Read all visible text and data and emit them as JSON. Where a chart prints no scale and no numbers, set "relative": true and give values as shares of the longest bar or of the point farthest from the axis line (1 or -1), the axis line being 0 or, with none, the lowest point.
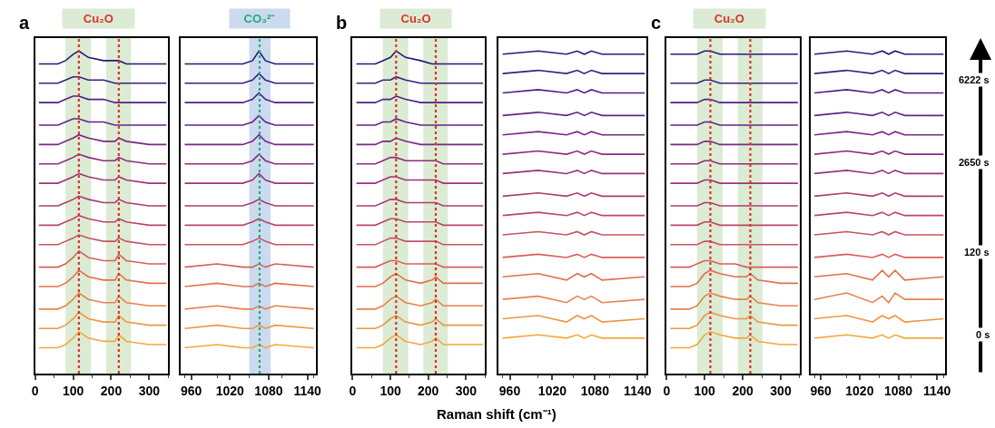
{
  "chart_data": [
    {
      "type": "line",
      "relative": true,
      "title": "Cu₂O",
      "annotations": [
        "a"
      ],
      "line_style": "solid",
      "marker": "none",
      "grid": false,
      "tick_labels": "x",
      "x": [
        10,
        60,
        80,
        100,
        115,
        140,
        180,
        210,
        220,
        240,
        300,
        345
      ],
      "xlim": [
        0,
        350
      ],
      "xticks": [
        0,
        100,
        200,
        300
      ],
      "bands": [
        {
          "axis": "x",
          "from": 80,
          "to": 147,
          "color": "#dcebd3"
        },
        {
          "axis": "x",
          "from": 187,
          "to": 252,
          "color": "#dcebd3"
        }
      ],
      "ref_lines": [
        {
          "axis": "x",
          "value": 115,
          "color": "#d9342b",
          "line_style": "dotted"
        },
        {
          "axis": "x",
          "value": 220,
          "color": "#d9342b",
          "line_style": "dotted"
        }
      ],
      "series": [
        {
          "color": "#f2a93b",
          "values": [
            0.08,
            0.08,
            0.09,
            0.11,
            0.13,
            0.11,
            0.1,
            0.1,
            0.12,
            0.1,
            0.09,
            0.09
          ]
        },
        {
          "color": "#ee9642",
          "values": [
            0.14,
            0.14,
            0.15,
            0.17,
            0.19,
            0.17,
            0.16,
            0.16,
            0.18,
            0.16,
            0.15,
            0.15
          ]
        },
        {
          "color": "#e8834a",
          "values": [
            0.2,
            0.2,
            0.21,
            0.23,
            0.25,
            0.23,
            0.22,
            0.22,
            0.24,
            0.22,
            0.21,
            0.21
          ]
        },
        {
          "color": "#e07052",
          "values": [
            0.27,
            0.27,
            0.28,
            0.3,
            0.32,
            0.3,
            0.29,
            0.29,
            0.31,
            0.29,
            0.28,
            0.28
          ]
        },
        {
          "color": "#d6605a",
          "values": [
            0.33,
            0.33,
            0.34,
            0.36,
            0.38,
            0.36,
            0.35,
            0.35,
            0.37,
            0.35,
            0.34,
            0.34
          ]
        },
        {
          "color": "#ca5262",
          "values": [
            0.4,
            0.4,
            0.41,
            0.42,
            0.43,
            0.42,
            0.41,
            0.41,
            0.42,
            0.41,
            0.4,
            0.4
          ]
        },
        {
          "color": "#bc466a",
          "values": [
            0.46,
            0.46,
            0.47,
            0.48,
            0.49,
            0.48,
            0.47,
            0.47,
            0.48,
            0.47,
            0.46,
            0.46
          ]
        },
        {
          "color": "#ad3c72",
          "values": [
            0.52,
            0.52,
            0.53,
            0.54,
            0.55,
            0.54,
            0.53,
            0.53,
            0.54,
            0.53,
            0.52,
            0.52
          ]
        },
        {
          "color": "#9c3479",
          "values": [
            0.59,
            0.59,
            0.6,
            0.61,
            0.62,
            0.61,
            0.6,
            0.6,
            0.61,
            0.6,
            0.59,
            0.59
          ]
        },
        {
          "color": "#8a2d7f",
          "values": [
            0.65,
            0.65,
            0.66,
            0.67,
            0.68,
            0.67,
            0.66,
            0.66,
            0.67,
            0.66,
            0.65,
            0.65
          ]
        },
        {
          "color": "#772884",
          "values": [
            0.71,
            0.71,
            0.72,
            0.73,
            0.74,
            0.73,
            0.72,
            0.72,
            0.73,
            0.72,
            0.71,
            0.71
          ]
        },
        {
          "color": "#632486",
          "values": [
            0.77,
            0.77,
            0.78,
            0.79,
            0.79,
            0.78,
            0.78,
            0.77,
            0.77,
            0.77,
            0.77,
            0.77
          ]
        },
        {
          "color": "#4f2186",
          "values": [
            0.84,
            0.84,
            0.85,
            0.86,
            0.86,
            0.85,
            0.85,
            0.84,
            0.84,
            0.84,
            0.84,
            0.84
          ]
        },
        {
          "color": "#3b1e82",
          "values": [
            0.9,
            0.9,
            0.91,
            0.92,
            0.92,
            0.91,
            0.91,
            0.9,
            0.9,
            0.9,
            0.9,
            0.9
          ]
        },
        {
          "color": "#261b78",
          "values": [
            0.96,
            0.96,
            0.97,
            0.99,
            1,
            0.98,
            0.97,
            0.97,
            0.97,
            0.96,
            0.96,
            0.96
          ]
        }
      ]
    },
    {
      "type": "line",
      "relative": true,
      "title": "CO₃²⁻",
      "line_style": "solid",
      "marker": "none",
      "grid": false,
      "tick_labels": "x",
      "x": [
        950,
        1000,
        1040,
        1055,
        1065,
        1075,
        1090,
        1150
      ],
      "xlim": [
        944,
        1153
      ],
      "xticks": [
        960,
        1020,
        1080,
        1140
      ],
      "bands": [
        {
          "axis": "x",
          "from": 1050,
          "to": 1083,
          "color": "#ccdaf0"
        }
      ],
      "ref_lines": [
        {
          "axis": "x",
          "value": 1066,
          "color": "#1fae78",
          "line_style": "dotted"
        }
      ],
      "series": [
        {
          "color": "#f2a93b",
          "values": [
            0.08,
            0.09,
            0.08,
            0.08,
            0.09,
            0.08,
            0.09,
            0.08
          ]
        },
        {
          "color": "#ee9642",
          "values": [
            0.14,
            0.15,
            0.14,
            0.14,
            0.15,
            0.14,
            0.15,
            0.14
          ]
        },
        {
          "color": "#e8834a",
          "values": [
            0.2,
            0.21,
            0.2,
            0.2,
            0.21,
            0.2,
            0.21,
            0.2
          ]
        },
        {
          "color": "#e07052",
          "values": [
            0.27,
            0.28,
            0.27,
            0.27,
            0.28,
            0.27,
            0.28,
            0.27
          ]
        },
        {
          "color": "#d6605a",
          "values": [
            0.33,
            0.34,
            0.33,
            0.33,
            0.34,
            0.33,
            0.34,
            0.33
          ]
        },
        {
          "color": "#ca5262",
          "values": [
            0.4,
            0.4,
            0.4,
            0.41,
            0.42,
            0.41,
            0.4,
            0.4
          ]
        },
        {
          "color": "#bc466a",
          "values": [
            0.46,
            0.46,
            0.46,
            0.47,
            0.48,
            0.47,
            0.46,
            0.46
          ]
        },
        {
          "color": "#ad3c72",
          "values": [
            0.52,
            0.52,
            0.52,
            0.53,
            0.54,
            0.53,
            0.52,
            0.52
          ]
        },
        {
          "color": "#9c3479",
          "values": [
            0.59,
            0.59,
            0.59,
            0.6,
            0.62,
            0.6,
            0.59,
            0.59
          ]
        },
        {
          "color": "#8a2d7f",
          "values": [
            0.65,
            0.65,
            0.65,
            0.66,
            0.68,
            0.66,
            0.65,
            0.65
          ]
        },
        {
          "color": "#772884",
          "values": [
            0.71,
            0.71,
            0.71,
            0.72,
            0.74,
            0.72,
            0.71,
            0.71
          ]
        },
        {
          "color": "#632486",
          "values": [
            0.77,
            0.77,
            0.77,
            0.78,
            0.8,
            0.78,
            0.77,
            0.77
          ]
        },
        {
          "color": "#4f2186",
          "values": [
            0.84,
            0.84,
            0.84,
            0.85,
            0.87,
            0.85,
            0.84,
            0.84
          ]
        },
        {
          "color": "#3b1e82",
          "values": [
            0.9,
            0.9,
            0.9,
            0.91,
            0.93,
            0.91,
            0.9,
            0.9
          ]
        },
        {
          "color": "#261b78",
          "values": [
            0.96,
            0.96,
            0.96,
            0.97,
            1,
            0.97,
            0.96,
            0.96
          ]
        }
      ]
    },
    {
      "type": "line",
      "relative": true,
      "title": "Cu₂O",
      "annotations": [
        "b"
      ],
      "line_style": "solid",
      "marker": "none",
      "grid": false,
      "tick_labels": "x",
      "x": [
        10,
        60,
        80,
        100,
        115,
        140,
        180,
        210,
        220,
        240,
        300,
        345
      ],
      "xlim": [
        0,
        350
      ],
      "xticks": [
        0,
        100,
        200,
        300
      ],
      "bands": [
        {
          "axis": "x",
          "from": 80,
          "to": 147,
          "color": "#dcebd3"
        },
        {
          "axis": "x",
          "from": 187,
          "to": 252,
          "color": "#dcebd3"
        }
      ],
      "ref_lines": [
        {
          "axis": "x",
          "value": 115,
          "color": "#d9342b",
          "line_style": "dotted"
        },
        {
          "axis": "x",
          "value": 220,
          "color": "#d9342b",
          "line_style": "dotted"
        }
      ],
      "series": [
        {
          "color": "#f2a93b",
          "values": [
            0.08,
            0.08,
            0.09,
            0.11,
            0.12,
            0.1,
            0.09,
            0.1,
            0.11,
            0.09,
            0.09,
            0.09
          ]
        },
        {
          "color": "#ee9642",
          "values": [
            0.14,
            0.14,
            0.15,
            0.17,
            0.18,
            0.16,
            0.15,
            0.16,
            0.17,
            0.15,
            0.15,
            0.15
          ]
        },
        {
          "color": "#e8834a",
          "values": [
            0.2,
            0.2,
            0.21,
            0.23,
            0.24,
            0.22,
            0.21,
            0.22,
            0.23,
            0.21,
            0.21,
            0.21
          ]
        },
        {
          "color": "#e07052",
          "values": [
            0.27,
            0.27,
            0.28,
            0.3,
            0.31,
            0.29,
            0.28,
            0.29,
            0.3,
            0.28,
            0.28,
            0.28
          ]
        },
        {
          "color": "#d6605a",
          "values": [
            0.33,
            0.33,
            0.34,
            0.35,
            0.35,
            0.34,
            0.34,
            0.34,
            0.34,
            0.33,
            0.33,
            0.33
          ]
        },
        {
          "color": "#ca5262",
          "values": [
            0.4,
            0.4,
            0.41,
            0.42,
            0.42,
            0.41,
            0.41,
            0.41,
            0.41,
            0.4,
            0.4,
            0.4
          ]
        },
        {
          "color": "#bc466a",
          "values": [
            0.46,
            0.46,
            0.47,
            0.48,
            0.48,
            0.47,
            0.47,
            0.47,
            0.47,
            0.46,
            0.46,
            0.46
          ]
        },
        {
          "color": "#ad3c72",
          "values": [
            0.52,
            0.52,
            0.53,
            0.54,
            0.54,
            0.53,
            0.53,
            0.53,
            0.53,
            0.52,
            0.52,
            0.52
          ]
        },
        {
          "color": "#9c3479",
          "values": [
            0.59,
            0.59,
            0.6,
            0.61,
            0.61,
            0.6,
            0.6,
            0.6,
            0.6,
            0.59,
            0.59,
            0.59
          ]
        },
        {
          "color": "#8a2d7f",
          "values": [
            0.65,
            0.65,
            0.66,
            0.67,
            0.67,
            0.66,
            0.66,
            0.66,
            0.66,
            0.65,
            0.65,
            0.65
          ]
        },
        {
          "color": "#772884",
          "values": [
            0.71,
            0.71,
            0.72,
            0.72,
            0.73,
            0.72,
            0.71,
            0.71,
            0.71,
            0.71,
            0.71,
            0.71
          ]
        },
        {
          "color": "#632486",
          "values": [
            0.77,
            0.77,
            0.78,
            0.78,
            0.79,
            0.78,
            0.77,
            0.77,
            0.77,
            0.77,
            0.77,
            0.77
          ]
        },
        {
          "color": "#4f2186",
          "values": [
            0.84,
            0.84,
            0.85,
            0.85,
            0.86,
            0.85,
            0.84,
            0.84,
            0.84,
            0.84,
            0.84,
            0.84
          ]
        },
        {
          "color": "#3b1e82",
          "values": [
            0.9,
            0.9,
            0.91,
            0.91,
            0.92,
            0.91,
            0.9,
            0.9,
            0.9,
            0.9,
            0.9,
            0.9
          ]
        },
        {
          "color": "#261b78",
          "values": [
            0.96,
            0.96,
            0.97,
            0.98,
            1,
            0.98,
            0.97,
            0.96,
            0.96,
            0.96,
            0.96,
            0.96
          ]
        }
      ]
    },
    {
      "type": "line",
      "relative": true,
      "xlabel": "Raman shift (cm⁻¹)",
      "line_style": "solid",
      "marker": "none",
      "grid": false,
      "tick_labels": "x",
      "x": [
        950,
        1000,
        1040,
        1055,
        1065,
        1075,
        1090,
        1150
      ],
      "xlim": [
        944,
        1153
      ],
      "xticks": [
        960,
        1020,
        1080,
        1140
      ],
      "series": [
        {
          "color": "#f2a93b",
          "values": [
            0.11,
            0.12,
            0.11,
            0.12,
            0.11,
            0.12,
            0.11,
            0.11
          ]
        },
        {
          "color": "#ee9642",
          "values": [
            0.17,
            0.18,
            0.16,
            0.18,
            0.17,
            0.18,
            0.16,
            0.17
          ]
        },
        {
          "color": "#e8834a",
          "values": [
            0.23,
            0.24,
            0.22,
            0.24,
            0.23,
            0.24,
            0.22,
            0.23
          ]
        },
        {
          "color": "#e07052",
          "values": [
            0.3,
            0.31,
            0.29,
            0.31,
            0.3,
            0.31,
            0.29,
            0.3
          ]
        },
        {
          "color": "#d6605a",
          "values": [
            0.36,
            0.37,
            0.36,
            0.37,
            0.36,
            0.37,
            0.36,
            0.36
          ]
        },
        {
          "color": "#ca5262",
          "values": [
            0.43,
            0.44,
            0.43,
            0.44,
            0.43,
            0.44,
            0.43,
            0.43
          ]
        },
        {
          "color": "#bc466a",
          "values": [
            0.49,
            0.5,
            0.49,
            0.5,
            0.49,
            0.5,
            0.49,
            0.49
          ]
        },
        {
          "color": "#ad3c72",
          "values": [
            0.55,
            0.56,
            0.55,
            0.56,
            0.55,
            0.56,
            0.55,
            0.55
          ]
        },
        {
          "color": "#9c3479",
          "values": [
            0.62,
            0.63,
            0.62,
            0.63,
            0.62,
            0.63,
            0.62,
            0.62
          ]
        },
        {
          "color": "#8a2d7f",
          "values": [
            0.68,
            0.69,
            0.68,
            0.69,
            0.68,
            0.69,
            0.68,
            0.68
          ]
        },
        {
          "color": "#772884",
          "values": [
            0.74,
            0.75,
            0.74,
            0.75,
            0.74,
            0.75,
            0.74,
            0.74
          ]
        },
        {
          "color": "#632486",
          "values": [
            0.8,
            0.81,
            0.8,
            0.81,
            0.8,
            0.81,
            0.8,
            0.8
          ]
        },
        {
          "color": "#4f2186",
          "values": [
            0.87,
            0.88,
            0.87,
            0.88,
            0.87,
            0.88,
            0.87,
            0.87
          ]
        },
        {
          "color": "#3b1e82",
          "values": [
            0.93,
            0.94,
            0.93,
            0.94,
            0.93,
            0.94,
            0.93,
            0.93
          ]
        },
        {
          "color": "#261b78",
          "values": [
            0.99,
            1,
            0.99,
            1,
            0.99,
            1,
            0.99,
            0.99
          ]
        }
      ]
    },
    {
      "type": "line",
      "relative": true,
      "title": "Cu₂O",
      "annotations": [
        "c"
      ],
      "line_style": "solid",
      "marker": "none",
      "grid": false,
      "tick_labels": "x",
      "x": [
        10,
        60,
        80,
        100,
        115,
        140,
        180,
        210,
        220,
        240,
        300,
        345
      ],
      "xlim": [
        0,
        350
      ],
      "xticks": [
        0,
        100,
        200,
        300
      ],
      "bands": [
        {
          "axis": "x",
          "from": 80,
          "to": 147,
          "color": "#dcebd3"
        },
        {
          "axis": "x",
          "from": 187,
          "to": 252,
          "color": "#dcebd3"
        }
      ],
      "ref_lines": [
        {
          "axis": "x",
          "value": 115,
          "color": "#d9342b",
          "line_style": "dotted"
        },
        {
          "axis": "x",
          "value": 220,
          "color": "#d9342b",
          "line_style": "dotted"
        }
      ],
      "series": [
        {
          "color": "#f2a93b",
          "values": [
            0.08,
            0.08,
            0.09,
            0.12,
            0.13,
            0.12,
            0.11,
            0.11,
            0.12,
            0.1,
            0.09,
            0.09
          ]
        },
        {
          "color": "#ee9642",
          "values": [
            0.14,
            0.14,
            0.15,
            0.18,
            0.19,
            0.18,
            0.17,
            0.17,
            0.18,
            0.16,
            0.15,
            0.15
          ]
        },
        {
          "color": "#e8834a",
          "values": [
            0.2,
            0.2,
            0.21,
            0.24,
            0.25,
            0.24,
            0.23,
            0.23,
            0.24,
            0.22,
            0.21,
            0.21
          ]
        },
        {
          "color": "#e07052",
          "values": [
            0.27,
            0.27,
            0.28,
            0.31,
            0.32,
            0.31,
            0.3,
            0.3,
            0.31,
            0.29,
            0.28,
            0.28
          ]
        },
        {
          "color": "#d6605a",
          "values": [
            0.33,
            0.33,
            0.34,
            0.35,
            0.35,
            0.34,
            0.34,
            0.33,
            0.33,
            0.33,
            0.33,
            0.33
          ]
        },
        {
          "color": "#ca5262",
          "values": [
            0.4,
            0.4,
            0.4,
            0.41,
            0.41,
            0.4,
            0.4,
            0.4,
            0.4,
            0.4,
            0.4,
            0.4
          ]
        },
        {
          "color": "#bc466a",
          "values": [
            0.46,
            0.46,
            0.46,
            0.47,
            0.47,
            0.46,
            0.46,
            0.46,
            0.46,
            0.46,
            0.46,
            0.46
          ]
        },
        {
          "color": "#ad3c72",
          "values": [
            0.52,
            0.52,
            0.52,
            0.53,
            0.53,
            0.52,
            0.52,
            0.52,
            0.52,
            0.52,
            0.52,
            0.52
          ]
        },
        {
          "color": "#9c3479",
          "values": [
            0.59,
            0.59,
            0.59,
            0.6,
            0.6,
            0.59,
            0.59,
            0.59,
            0.59,
            0.59,
            0.59,
            0.59
          ]
        },
        {
          "color": "#8a2d7f",
          "values": [
            0.65,
            0.65,
            0.65,
            0.66,
            0.66,
            0.65,
            0.65,
            0.65,
            0.65,
            0.65,
            0.65,
            0.65
          ]
        },
        {
          "color": "#772884",
          "values": [
            0.71,
            0.71,
            0.71,
            0.72,
            0.72,
            0.71,
            0.71,
            0.71,
            0.71,
            0.71,
            0.71,
            0.71
          ]
        },
        {
          "color": "#632486",
          "values": [
            0.77,
            0.77,
            0.77,
            0.78,
            0.78,
            0.77,
            0.77,
            0.77,
            0.77,
            0.77,
            0.77,
            0.77
          ]
        },
        {
          "color": "#4f2186",
          "values": [
            0.84,
            0.84,
            0.84,
            0.85,
            0.85,
            0.84,
            0.84,
            0.84,
            0.84,
            0.84,
            0.84,
            0.84
          ]
        },
        {
          "color": "#3b1e82",
          "values": [
            0.9,
            0.9,
            0.9,
            0.91,
            0.91,
            0.9,
            0.9,
            0.9,
            0.9,
            0.9,
            0.9,
            0.9
          ]
        },
        {
          "color": "#261b78",
          "values": [
            0.99,
            0.99,
            0.99,
            1,
            1,
            0.99,
            0.99,
            0.99,
            0.99,
            0.99,
            0.99,
            0.99
          ]
        }
      ]
    },
    {
      "type": "line",
      "relative": true,
      "annotations": [
        "0 s",
        "120 s",
        "2650 s",
        "6222 s"
      ],
      "line_style": "solid",
      "marker": "none",
      "grid": false,
      "tick_labels": "x",
      "x": [
        950,
        1000,
        1040,
        1055,
        1065,
        1075,
        1090,
        1150
      ],
      "xlim": [
        944,
        1153
      ],
      "xticks": [
        960,
        1020,
        1080,
        1140
      ],
      "series": [
        {
          "color": "#f2a93b",
          "values": [
            0.11,
            0.12,
            0.11,
            0.12,
            0.11,
            0.12,
            0.11,
            0.11
          ]
        },
        {
          "color": "#ee9642",
          "values": [
            0.17,
            0.18,
            0.16,
            0.18,
            0.17,
            0.18,
            0.16,
            0.17
          ]
        },
        {
          "color": "#e8834a",
          "values": [
            0.23,
            0.25,
            0.22,
            0.24,
            0.22,
            0.25,
            0.23,
            0.23
          ]
        },
        {
          "color": "#e07052",
          "values": [
            0.3,
            0.31,
            0.29,
            0.32,
            0.3,
            0.32,
            0.29,
            0.3
          ]
        },
        {
          "color": "#d6605a",
          "values": [
            0.36,
            0.37,
            0.36,
            0.37,
            0.36,
            0.37,
            0.36,
            0.36
          ]
        },
        {
          "color": "#ca5262",
          "values": [
            0.43,
            0.44,
            0.43,
            0.44,
            0.43,
            0.44,
            0.43,
            0.43
          ]
        },
        {
          "color": "#bc466a",
          "values": [
            0.49,
            0.5,
            0.49,
            0.5,
            0.49,
            0.5,
            0.49,
            0.49
          ]
        },
        {
          "color": "#ad3c72",
          "values": [
            0.55,
            0.56,
            0.55,
            0.56,
            0.55,
            0.56,
            0.55,
            0.55
          ]
        },
        {
          "color": "#9c3479",
          "values": [
            0.62,
            0.63,
            0.62,
            0.63,
            0.62,
            0.63,
            0.62,
            0.62
          ]
        },
        {
          "color": "#8a2d7f",
          "values": [
            0.68,
            0.69,
            0.68,
            0.69,
            0.68,
            0.69,
            0.68,
            0.68
          ]
        },
        {
          "color": "#772884",
          "values": [
            0.74,
            0.75,
            0.74,
            0.75,
            0.74,
            0.75,
            0.74,
            0.74
          ]
        },
        {
          "color": "#632486",
          "values": [
            0.8,
            0.81,
            0.8,
            0.81,
            0.8,
            0.81,
            0.8,
            0.8
          ]
        },
        {
          "color": "#4f2186",
          "values": [
            0.87,
            0.88,
            0.87,
            0.88,
            0.87,
            0.88,
            0.87,
            0.87
          ]
        },
        {
          "color": "#3b1e82",
          "values": [
            0.93,
            0.94,
            0.93,
            0.94,
            0.93,
            0.94,
            0.93,
            0.93
          ]
        },
        {
          "color": "#261b78",
          "values": [
            0.99,
            1,
            0.99,
            1,
            0.99,
            1,
            0.99,
            0.99
          ]
        }
      ]
    }
  ]
}
